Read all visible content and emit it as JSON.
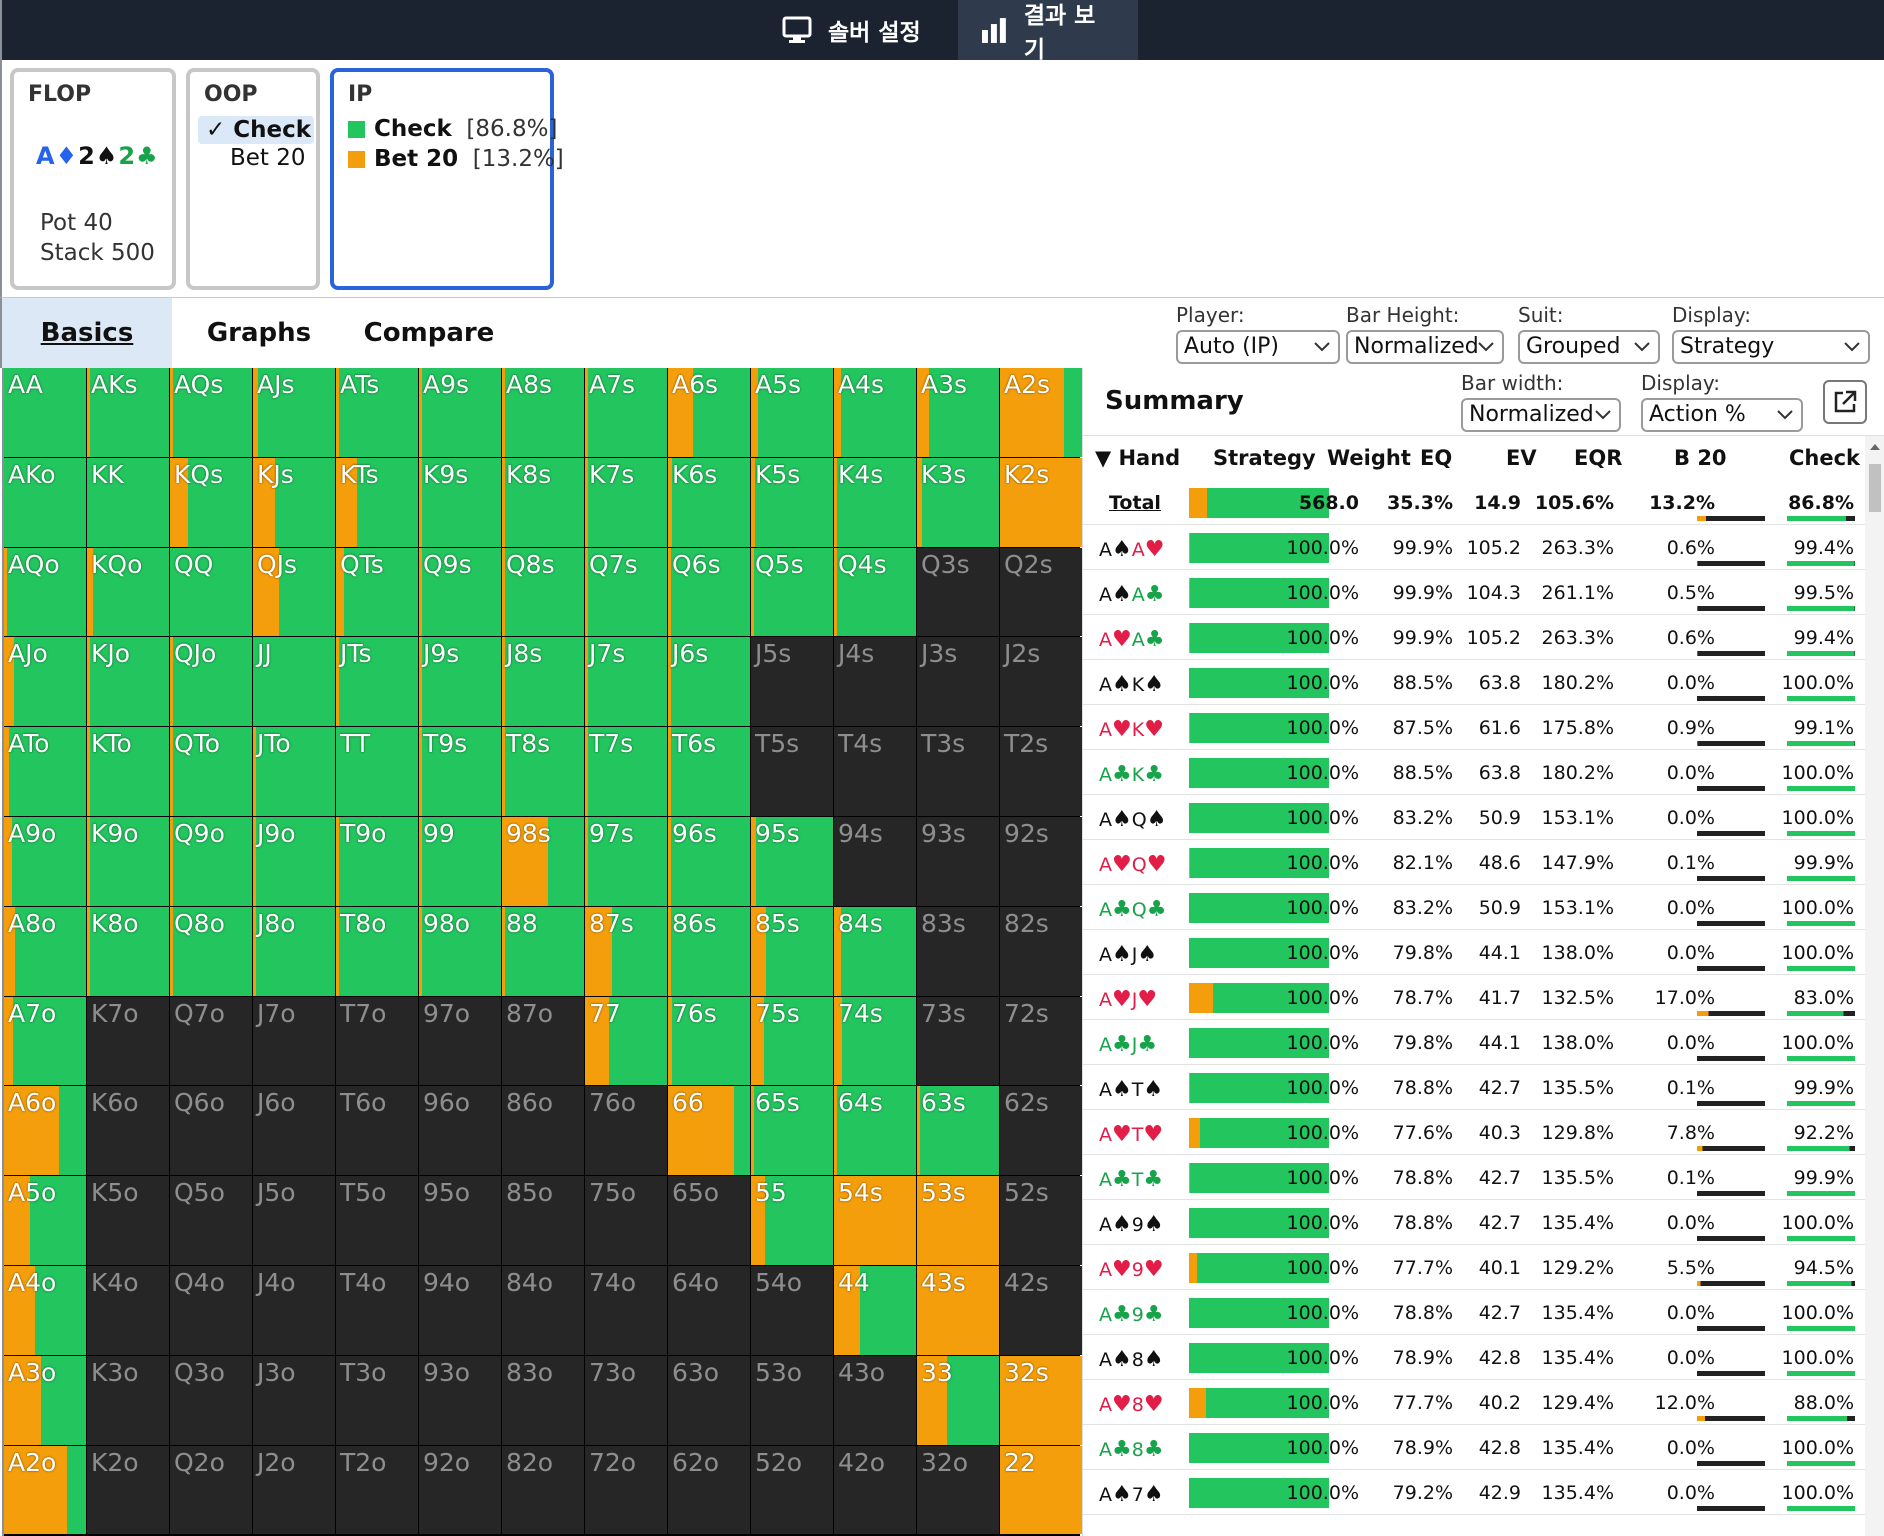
{
  "topbar": {
    "tabs": [
      {
        "label": "솔버 설정",
        "icon": "monitor-icon",
        "active": false
      },
      {
        "label": "결과 보기",
        "icon": "bar-chart-icon",
        "active": true
      }
    ]
  },
  "flop": {
    "title": "FLOP",
    "cards": [
      {
        "rank": "A",
        "suit": "♦",
        "color": "#2563eb"
      },
      {
        "rank": "2",
        "suit": "♠",
        "color": "#111111"
      },
      {
        "rank": "2",
        "suit": "♣",
        "color": "#16a34a"
      }
    ],
    "pot": "Pot 40",
    "stack": "Stack 500"
  },
  "oop": {
    "title": "OOP",
    "check_mark": "✓",
    "options": [
      "Check",
      "Bet 20"
    ]
  },
  "ip": {
    "title": "IP",
    "actions": [
      {
        "label": "Check",
        "pct": "[86.8%]",
        "color": "#22c55e"
      },
      {
        "label": "Bet 20",
        "pct": "[13.2%]",
        "color": "#f59e0b"
      }
    ]
  },
  "tabs": [
    "Basics",
    "Graphs",
    "Compare"
  ],
  "controls": [
    {
      "label": "Player:",
      "value": "Auto (IP)"
    },
    {
      "label": "Bar Height:",
      "value": "Normalized"
    },
    {
      "label": "Suit:",
      "value": "Grouped"
    },
    {
      "label": "Display:",
      "value": "Strategy"
    }
  ],
  "colors": {
    "check": "#22c55e",
    "bet": "#f59e0b",
    "empty": "#262626"
  },
  "grid": {
    "ranks": [
      "A",
      "K",
      "Q",
      "J",
      "T",
      "9",
      "8",
      "7",
      "6",
      "5",
      "4",
      "3",
      "2"
    ],
    "empty_cells": [
      "Q3s",
      "Q2s",
      "J5s",
      "J4s",
      "J3s",
      "J2s",
      "T5s",
      "T4s",
      "T3s",
      "T2s",
      "94s",
      "93s",
      "92s",
      "83s",
      "82s",
      "73s",
      "72s",
      "62s",
      "52s",
      "42s",
      "K7o",
      "Q7o",
      "J7o",
      "T7o",
      "97o",
      "87o",
      "K6o",
      "Q6o",
      "J6o",
      "T6o",
      "96o",
      "86o",
      "76o",
      "K5o",
      "Q5o",
      "J5o",
      "T5o",
      "95o",
      "85o",
      "75o",
      "65o",
      "K4o",
      "Q4o",
      "J4o",
      "T4o",
      "94o",
      "84o",
      "74o",
      "64o",
      "54o",
      "K3o",
      "Q3o",
      "J3o",
      "T3o",
      "93o",
      "83o",
      "73o",
      "63o",
      "53o",
      "43o",
      "K2o",
      "Q2o",
      "J2o",
      "T2o",
      "92o",
      "82o",
      "72o",
      "62o",
      "52o",
      "42o",
      "32o"
    ],
    "bet_freq": {
      "AA": 0,
      "AKs": 0.01,
      "AQs": 0.01,
      "AJs": 0.06,
      "ATs": 0.03,
      "A9s": 0.02,
      "A8s": 0.01,
      "A7s": 0.02,
      "A6s": 0.31,
      "A5s": 0.08,
      "A4s": 0.09,
      "A3s": 0.15,
      "A2s": 0.78,
      "AKo": 0,
      "KK": 0,
      "KQs": 0.22,
      "KJs": 0.27,
      "KTs": 0.25,
      "K9s": 0.01,
      "K8s": 0.01,
      "K7s": 0.02,
      "K6s": 0.05,
      "K5s": 0.05,
      "K4s": 0.03,
      "K3s": 0.06,
      "K2s": 1.0,
      "AQo": 0.02,
      "KQo": 0.07,
      "QQ": 0,
      "QJs": 0.32,
      "QTs": 0.1,
      "Q9s": 0.01,
      "Q8s": 0.01,
      "Q7s": 0.02,
      "Q6s": 0.02,
      "Q5s": 0.01,
      "Q4s": 0.01,
      "AJo": 0.12,
      "KJo": 0.01,
      "QJo": 0.01,
      "JJ": 0,
      "JTs": 0.04,
      "J9s": 0.01,
      "J8s": 0.01,
      "J7s": 0.01,
      "J6s": 0.01,
      "ATo": 0.06,
      "KTo": 0.01,
      "QTo": 0.01,
      "JTo": 0.01,
      "TT": 0,
      "T9s": 0.01,
      "T8s": 0.01,
      "T7s": 0.01,
      "T6s": 0.01,
      "A9o": 0.1,
      "K9o": 0.01,
      "Q9o": 0.01,
      "J9o": 0.01,
      "T9o": 0.01,
      "99": 0.01,
      "98s": 0.56,
      "97s": 0.03,
      "96s": 0.03,
      "95s": 0.06,
      "A8o": 0.13,
      "K8o": 0.02,
      "Q8o": 0.02,
      "J8o": 0.02,
      "T8o": 0.01,
      "98o": 0.01,
      "88": 0.02,
      "87s": 0.33,
      "86s": 0.04,
      "85s": 0.18,
      "84s": 0.09,
      "A7o": 0.11,
      "77": 0.29,
      "76s": 0.05,
      "75s": 0.16,
      "74s": 0.1,
      "A6o": 0.67,
      "66": 0.8,
      "65s": 0.03,
      "64s": 0.03,
      "63s": 0.02,
      "A5o": 0.32,
      "55": 0.17,
      "54s": 1.0,
      "53s": 1.0,
      "A4o": 0.38,
      "44": 0.32,
      "43s": 1.0,
      "A3o": 0.45,
      "33": 0.37,
      "32s": 1.0,
      "A2o": 0.77,
      "22": 1.0
    }
  },
  "summary": {
    "title": "Summary",
    "controls": [
      {
        "label": "Bar width:",
        "value": "Normalized"
      },
      {
        "label": "Display:",
        "value": "Action %"
      }
    ],
    "columns": [
      "▼ Hand",
      "Strategy",
      "Weight",
      "EQ",
      "EV",
      "EQR",
      "B 20",
      "Check"
    ],
    "total": {
      "hand": "Total",
      "bet": 0.132,
      "weight": "568.0",
      "eq": "35.3%",
      "ev": "14.9",
      "eqr": "105.6%",
      "b20": "13.2%",
      "check": "86.8%"
    },
    "rows": [
      {
        "r1": "A",
        "s1": "♠",
        "r2": "A",
        "s2": "♥",
        "bet": 0.006,
        "weight": "100.0%",
        "eq": "99.9%",
        "ev": "105.2",
        "eqr": "263.3%",
        "b20": "0.6%",
        "check": "99.4%"
      },
      {
        "r1": "A",
        "s1": "♠",
        "r2": "A",
        "s2": "♣",
        "bet": 0.005,
        "weight": "100.0%",
        "eq": "99.9%",
        "ev": "104.3",
        "eqr": "261.1%",
        "b20": "0.5%",
        "check": "99.5%"
      },
      {
        "r1": "A",
        "s1": "♥",
        "r2": "A",
        "s2": "♣",
        "bet": 0.006,
        "weight": "100.0%",
        "eq": "99.9%",
        "ev": "105.2",
        "eqr": "263.3%",
        "b20": "0.6%",
        "check": "99.4%"
      },
      {
        "r1": "A",
        "s1": "♠",
        "r2": "K",
        "s2": "♠",
        "bet": 0.0,
        "weight": "100.0%",
        "eq": "88.5%",
        "ev": "63.8",
        "eqr": "180.2%",
        "b20": "0.0%",
        "check": "100.0%"
      },
      {
        "r1": "A",
        "s1": "♥",
        "r2": "K",
        "s2": "♥",
        "bet": 0.009,
        "weight": "100.0%",
        "eq": "87.5%",
        "ev": "61.6",
        "eqr": "175.8%",
        "b20": "0.9%",
        "check": "99.1%"
      },
      {
        "r1": "A",
        "s1": "♣",
        "r2": "K",
        "s2": "♣",
        "bet": 0.0,
        "weight": "100.0%",
        "eq": "88.5%",
        "ev": "63.8",
        "eqr": "180.2%",
        "b20": "0.0%",
        "check": "100.0%"
      },
      {
        "r1": "A",
        "s1": "♠",
        "r2": "Q",
        "s2": "♠",
        "bet": 0.0,
        "weight": "100.0%",
        "eq": "83.2%",
        "ev": "50.9",
        "eqr": "153.1%",
        "b20": "0.0%",
        "check": "100.0%"
      },
      {
        "r1": "A",
        "s1": "♥",
        "r2": "Q",
        "s2": "♥",
        "bet": 0.001,
        "weight": "100.0%",
        "eq": "82.1%",
        "ev": "48.6",
        "eqr": "147.9%",
        "b20": "0.1%",
        "check": "99.9%"
      },
      {
        "r1": "A",
        "s1": "♣",
        "r2": "Q",
        "s2": "♣",
        "bet": 0.0,
        "weight": "100.0%",
        "eq": "83.2%",
        "ev": "50.9",
        "eqr": "153.1%",
        "b20": "0.0%",
        "check": "100.0%"
      },
      {
        "r1": "A",
        "s1": "♠",
        "r2": "J",
        "s2": "♠",
        "bet": 0.0,
        "weight": "100.0%",
        "eq": "79.8%",
        "ev": "44.1",
        "eqr": "138.0%",
        "b20": "0.0%",
        "check": "100.0%"
      },
      {
        "r1": "A",
        "s1": "♥",
        "r2": "J",
        "s2": "♥",
        "bet": 0.17,
        "weight": "100.0%",
        "eq": "78.7%",
        "ev": "41.7",
        "eqr": "132.5%",
        "b20": "17.0%",
        "check": "83.0%"
      },
      {
        "r1": "A",
        "s1": "♣",
        "r2": "J",
        "s2": "♣",
        "bet": 0.0,
        "weight": "100.0%",
        "eq": "79.8%",
        "ev": "44.1",
        "eqr": "138.0%",
        "b20": "0.0%",
        "check": "100.0%"
      },
      {
        "r1": "A",
        "s1": "♠",
        "r2": "T",
        "s2": "♠",
        "bet": 0.001,
        "weight": "100.0%",
        "eq": "78.8%",
        "ev": "42.7",
        "eqr": "135.5%",
        "b20": "0.1%",
        "check": "99.9%"
      },
      {
        "r1": "A",
        "s1": "♥",
        "r2": "T",
        "s2": "♥",
        "bet": 0.078,
        "weight": "100.0%",
        "eq": "77.6%",
        "ev": "40.3",
        "eqr": "129.8%",
        "b20": "7.8%",
        "check": "92.2%"
      },
      {
        "r1": "A",
        "s1": "♣",
        "r2": "T",
        "s2": "♣",
        "bet": 0.001,
        "weight": "100.0%",
        "eq": "78.8%",
        "ev": "42.7",
        "eqr": "135.5%",
        "b20": "0.1%",
        "check": "99.9%"
      },
      {
        "r1": "A",
        "s1": "♠",
        "r2": "9",
        "s2": "♠",
        "bet": 0.0,
        "weight": "100.0%",
        "eq": "78.8%",
        "ev": "42.7",
        "eqr": "135.4%",
        "b20": "0.0%",
        "check": "100.0%"
      },
      {
        "r1": "A",
        "s1": "♥",
        "r2": "9",
        "s2": "♥",
        "bet": 0.055,
        "weight": "100.0%",
        "eq": "77.7%",
        "ev": "40.1",
        "eqr": "129.2%",
        "b20": "5.5%",
        "check": "94.5%"
      },
      {
        "r1": "A",
        "s1": "♣",
        "r2": "9",
        "s2": "♣",
        "bet": 0.0,
        "weight": "100.0%",
        "eq": "78.8%",
        "ev": "42.7",
        "eqr": "135.4%",
        "b20": "0.0%",
        "check": "100.0%"
      },
      {
        "r1": "A",
        "s1": "♠",
        "r2": "8",
        "s2": "♠",
        "bet": 0.0,
        "weight": "100.0%",
        "eq": "78.9%",
        "ev": "42.8",
        "eqr": "135.4%",
        "b20": "0.0%",
        "check": "100.0%"
      },
      {
        "r1": "A",
        "s1": "♥",
        "r2": "8",
        "s2": "♥",
        "bet": 0.12,
        "weight": "100.0%",
        "eq": "77.7%",
        "ev": "40.2",
        "eqr": "129.4%",
        "b20": "12.0%",
        "check": "88.0%"
      },
      {
        "r1": "A",
        "s1": "♣",
        "r2": "8",
        "s2": "♣",
        "bet": 0.0,
        "weight": "100.0%",
        "eq": "78.9%",
        "ev": "42.8",
        "eqr": "135.4%",
        "b20": "0.0%",
        "check": "100.0%"
      },
      {
        "r1": "A",
        "s1": "♠",
        "r2": "7",
        "s2": "♠",
        "bet": 0.0,
        "weight": "100.0%",
        "eq": "79.2%",
        "ev": "42.9",
        "eqr": "135.4%",
        "b20": "0.0%",
        "check": "100.0%"
      }
    ],
    "suit_colors": {
      "♠": "#111111",
      "♥": "#e11d48",
      "♣": "#16a34a",
      "♦": "#2563eb"
    }
  }
}
